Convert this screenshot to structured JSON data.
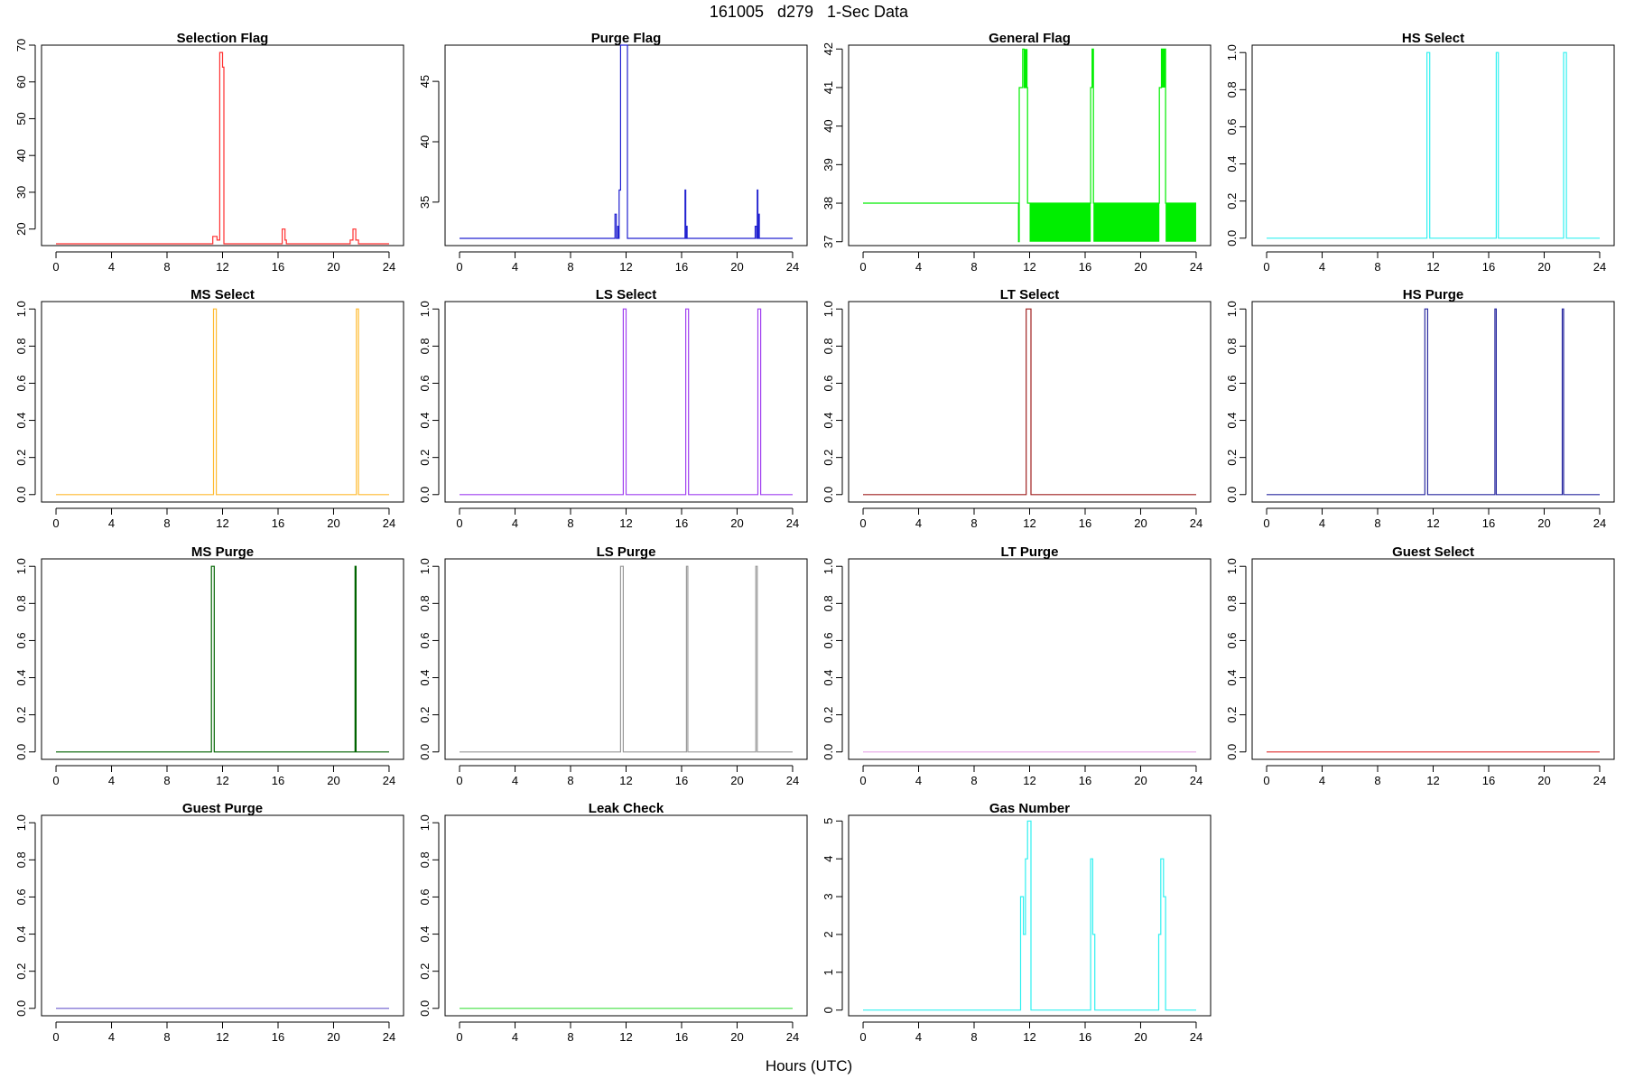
{
  "header": {
    "title": "161005   d279   1-Sec Data",
    "xlabel": "Hours (UTC)"
  },
  "chart_data": [
    {
      "type": "line",
      "title": "Selection Flag",
      "color": "#ff3030",
      "xlim": [
        0,
        24
      ],
      "ylim": [
        15.5,
        70
      ],
      "xticks": [
        "0",
        "4",
        "8",
        "12",
        "16",
        "20",
        "24"
      ],
      "yticks": [
        "20",
        "30",
        "40",
        "50",
        "60",
        "70"
      ],
      "x": [
        0,
        11.3,
        11.3,
        11.6,
        11.6,
        11.8,
        11.8,
        12.0,
        12.0,
        12.1,
        12.1,
        16.3,
        16.3,
        16.5,
        16.5,
        16.6,
        16.6,
        21.2,
        21.2,
        21.4,
        21.4,
        21.6,
        21.6,
        21.8,
        21.8,
        24
      ],
      "y": [
        16,
        16,
        18,
        18,
        17,
        17,
        68,
        68,
        64,
        64,
        16,
        16,
        20,
        20,
        17,
        17,
        16,
        16,
        17,
        17,
        20,
        20,
        17,
        17,
        16,
        16
      ]
    },
    {
      "type": "line",
      "title": "Purge Flag",
      "color": "#2020d0",
      "xlim": [
        0,
        24
      ],
      "ylim": [
        31.4,
        48
      ],
      "xticks": [
        "0",
        "4",
        "8",
        "12",
        "16",
        "20",
        "24"
      ],
      "yticks": [
        "35",
        "40",
        "45"
      ],
      "x": [
        0,
        11.2,
        11.2,
        11.3,
        11.3,
        11.4,
        11.4,
        11.45,
        11.45,
        11.5,
        11.5,
        11.6,
        11.6,
        11.8,
        11.8,
        12.1,
        12.1,
        16.25,
        16.25,
        16.3,
        16.3,
        16.35,
        16.35,
        16.4,
        16.4,
        21.3,
        21.3,
        21.4,
        21.4,
        21.45,
        21.45,
        21.5,
        21.5,
        21.55,
        21.55,
        21.6,
        21.6,
        24
      ],
      "y": [
        32,
        32,
        34,
        34,
        32,
        32,
        33,
        33,
        32,
        32,
        36,
        36,
        48,
        48,
        48,
        48,
        32,
        32,
        36,
        36,
        32,
        32,
        33,
        33,
        32,
        32,
        33,
        33,
        32,
        32,
        36,
        36,
        32,
        32,
        34,
        34,
        32,
        32
      ]
    },
    {
      "type": "line",
      "title": "General Flag",
      "color": "#00ee00",
      "xlim": [
        0,
        24
      ],
      "ylim": [
        36.9,
        42.1
      ],
      "xticks": [
        "0",
        "4",
        "8",
        "12",
        "16",
        "20",
        "24"
      ],
      "yticks": [
        "37",
        "38",
        "39",
        "40",
        "41",
        "42"
      ],
      "x": [
        0,
        11.2,
        11.2,
        11.25,
        11.25,
        11.5,
        11.5,
        11.6,
        11.6,
        11.85,
        11.85,
        12.0,
        12.0,
        16.4,
        16.4,
        16.5,
        16.5,
        16.6,
        16.6,
        21.35,
        21.35,
        21.5,
        21.5,
        21.8,
        21.8,
        24
      ],
      "y": [
        38,
        38,
        37,
        37,
        41,
        41,
        42,
        42,
        41,
        41,
        38,
        38,
        38,
        38,
        41,
        41,
        42,
        42,
        38,
        38,
        41,
        41,
        42,
        42,
        38,
        38
      ],
      "bands": [
        {
          "x0": 12.0,
          "x1": 16.4,
          "y0": 37,
          "y1": 38
        },
        {
          "x0": 16.6,
          "x1": 21.35,
          "y0": 37,
          "y1": 38
        },
        {
          "x0": 21.8,
          "x1": 24,
          "y0": 37,
          "y1": 38
        },
        {
          "x0": 11.6,
          "x1": 11.85,
          "y0": 41,
          "y1": 42
        },
        {
          "x0": 16.5,
          "x1": 16.6,
          "y0": 41,
          "y1": 42
        },
        {
          "x0": 21.5,
          "x1": 21.8,
          "y0": 41,
          "y1": 42
        }
      ]
    },
    {
      "type": "line",
      "title": "HS Select",
      "color": "#30f0f0",
      "xlim": [
        0,
        24
      ],
      "ylim": [
        -0.04,
        1.04
      ],
      "xticks": [
        "0",
        "4",
        "8",
        "12",
        "16",
        "20",
        "24"
      ],
      "yticks": [
        "0.0",
        "0.2",
        "0.4",
        "0.6",
        "0.8",
        "1.0"
      ],
      "x": [
        0,
        11.55,
        11.55,
        11.75,
        11.75,
        16.55,
        16.55,
        16.7,
        16.7,
        21.4,
        21.4,
        21.6,
        21.6,
        24
      ],
      "y": [
        0,
        0,
        1,
        1,
        0,
        0,
        1,
        1,
        0,
        0,
        1,
        1,
        0,
        0
      ]
    },
    {
      "type": "line",
      "title": "MS Select",
      "color": "#ffbb30",
      "xlim": [
        0,
        24
      ],
      "ylim": [
        -0.04,
        1.04
      ],
      "xticks": [
        "0",
        "4",
        "8",
        "12",
        "16",
        "20",
        "24"
      ],
      "yticks": [
        "0.0",
        "0.2",
        "0.4",
        "0.6",
        "0.8",
        "1.0"
      ],
      "x": [
        0,
        11.35,
        11.35,
        11.55,
        11.55,
        21.65,
        21.65,
        21.8,
        21.8,
        24
      ],
      "y": [
        0,
        0,
        1,
        1,
        0,
        0,
        1,
        1,
        0,
        0
      ]
    },
    {
      "type": "line",
      "title": "LS Select",
      "color": "#a040f0",
      "xlim": [
        0,
        24
      ],
      "ylim": [
        -0.04,
        1.04
      ],
      "xticks": [
        "0",
        "4",
        "8",
        "12",
        "16",
        "20",
        "24"
      ],
      "yticks": [
        "0.0",
        "0.2",
        "0.4",
        "0.6",
        "0.8",
        "1.0"
      ],
      "x": [
        0,
        11.8,
        11.8,
        12.0,
        12.0,
        16.3,
        16.3,
        16.5,
        16.5,
        21.5,
        21.5,
        21.7,
        21.7,
        24
      ],
      "y": [
        0,
        0,
        1,
        1,
        0,
        0,
        1,
        1,
        0,
        0,
        1,
        1,
        0,
        0
      ]
    },
    {
      "type": "line",
      "title": "LT Select",
      "color": "#a02020",
      "xlim": [
        0,
        24
      ],
      "ylim": [
        -0.04,
        1.04
      ],
      "xticks": [
        "0",
        "4",
        "8",
        "12",
        "16",
        "20",
        "24"
      ],
      "yticks": [
        "0.0",
        "0.2",
        "0.4",
        "0.6",
        "0.8",
        "1.0"
      ],
      "x": [
        0,
        11.75,
        11.75,
        12.1,
        12.1,
        24
      ],
      "y": [
        0,
        0,
        1,
        1,
        0,
        0
      ]
    },
    {
      "type": "line",
      "title": "HS Purge",
      "color": "#2a2aa0",
      "xlim": [
        0,
        24
      ],
      "ylim": [
        -0.04,
        1.04
      ],
      "xticks": [
        "0",
        "4",
        "8",
        "12",
        "16",
        "20",
        "24"
      ],
      "yticks": [
        "0.0",
        "0.2",
        "0.4",
        "0.6",
        "0.8",
        "1.0"
      ],
      "x": [
        0,
        11.4,
        11.4,
        11.6,
        11.6,
        16.45,
        16.45,
        16.55,
        16.55,
        21.3,
        21.3,
        21.4,
        21.4,
        24
      ],
      "y": [
        0,
        0,
        1,
        1,
        0,
        0,
        1,
        1,
        0,
        0,
        1,
        1,
        0,
        0
      ]
    },
    {
      "type": "line",
      "title": "MS Purge",
      "color": "#006400",
      "xlim": [
        0,
        24
      ],
      "ylim": [
        -0.04,
        1.04
      ],
      "xticks": [
        "0",
        "4",
        "8",
        "12",
        "16",
        "20",
        "24"
      ],
      "yticks": [
        "0.0",
        "0.2",
        "0.4",
        "0.6",
        "0.8",
        "1.0"
      ],
      "x": [
        0,
        11.2,
        11.2,
        11.4,
        11.4,
        21.55,
        21.55,
        21.62,
        21.62,
        24
      ],
      "y": [
        0,
        0,
        1,
        1,
        0,
        0,
        1,
        1,
        0,
        0
      ]
    },
    {
      "type": "line",
      "title": "LS Purge",
      "color": "#999999",
      "xlim": [
        0,
        24
      ],
      "ylim": [
        -0.04,
        1.04
      ],
      "xticks": [
        "0",
        "4",
        "8",
        "12",
        "16",
        "20",
        "24"
      ],
      "yticks": [
        "0.0",
        "0.2",
        "0.4",
        "0.6",
        "0.8",
        "1.0"
      ],
      "x": [
        0,
        11.6,
        11.6,
        11.8,
        11.8,
        16.35,
        16.35,
        16.45,
        16.45,
        21.35,
        21.35,
        21.45,
        21.45,
        24
      ],
      "y": [
        0,
        0,
        1,
        1,
        0,
        0,
        1,
        1,
        0,
        0,
        1,
        1,
        0,
        0
      ]
    },
    {
      "type": "line",
      "title": "LT Purge",
      "color": "#e8a8e8",
      "xlim": [
        0,
        24
      ],
      "ylim": [
        -0.04,
        1.04
      ],
      "xticks": [
        "0",
        "4",
        "8",
        "12",
        "16",
        "20",
        "24"
      ],
      "yticks": [
        "0.0",
        "0.2",
        "0.4",
        "0.6",
        "0.8",
        "1.0"
      ],
      "x": [
        0,
        24
      ],
      "y": [
        0,
        0
      ]
    },
    {
      "type": "line",
      "title": "Guest Select",
      "color": "#e03030",
      "xlim": [
        0,
        24
      ],
      "ylim": [
        -0.04,
        1.04
      ],
      "xticks": [
        "0",
        "4",
        "8",
        "12",
        "16",
        "20",
        "24"
      ],
      "yticks": [
        "0.0",
        "0.2",
        "0.4",
        "0.6",
        "0.8",
        "1.0"
      ],
      "x": [
        0,
        24
      ],
      "y": [
        0,
        0
      ]
    },
    {
      "type": "line",
      "title": "Guest Purge",
      "color": "#6a5acd",
      "xlim": [
        0,
        24
      ],
      "ylim": [
        -0.04,
        1.04
      ],
      "xticks": [
        "0",
        "4",
        "8",
        "12",
        "16",
        "20",
        "24"
      ],
      "yticks": [
        "0.0",
        "0.2",
        "0.4",
        "0.6",
        "0.8",
        "1.0"
      ],
      "x": [
        0,
        24
      ],
      "y": [
        0,
        0
      ]
    },
    {
      "type": "line",
      "title": "Leak Check",
      "color": "#40e040",
      "xlim": [
        0,
        24
      ],
      "ylim": [
        -0.04,
        1.04
      ],
      "xticks": [
        "0",
        "4",
        "8",
        "12",
        "16",
        "20",
        "24"
      ],
      "yticks": [
        "0.0",
        "0.2",
        "0.4",
        "0.6",
        "0.8",
        "1.0"
      ],
      "x": [
        0,
        24
      ],
      "y": [
        0,
        0
      ]
    },
    {
      "type": "line",
      "title": "Gas Number",
      "color": "#30f0f0",
      "xlim": [
        0,
        24
      ],
      "ylim": [
        -0.15,
        5.15
      ],
      "xticks": [
        "0",
        "4",
        "8",
        "12",
        "16",
        "20",
        "24"
      ],
      "yticks": [
        "0",
        "1",
        "2",
        "3",
        "4",
        "5"
      ],
      "x": [
        0,
        11.35,
        11.35,
        11.55,
        11.55,
        11.7,
        11.7,
        11.85,
        11.85,
        12.1,
        12.1,
        16.4,
        16.4,
        16.55,
        16.55,
        16.7,
        16.7,
        21.3,
        21.3,
        21.45,
        21.45,
        21.65,
        21.65,
        21.8,
        21.8,
        24
      ],
      "y": [
        0,
        0,
        3,
        3,
        2,
        2,
        4,
        4,
        5,
        5,
        0,
        0,
        4,
        4,
        2,
        2,
        0,
        0,
        2,
        2,
        4,
        4,
        3,
        3,
        0,
        0
      ]
    }
  ]
}
